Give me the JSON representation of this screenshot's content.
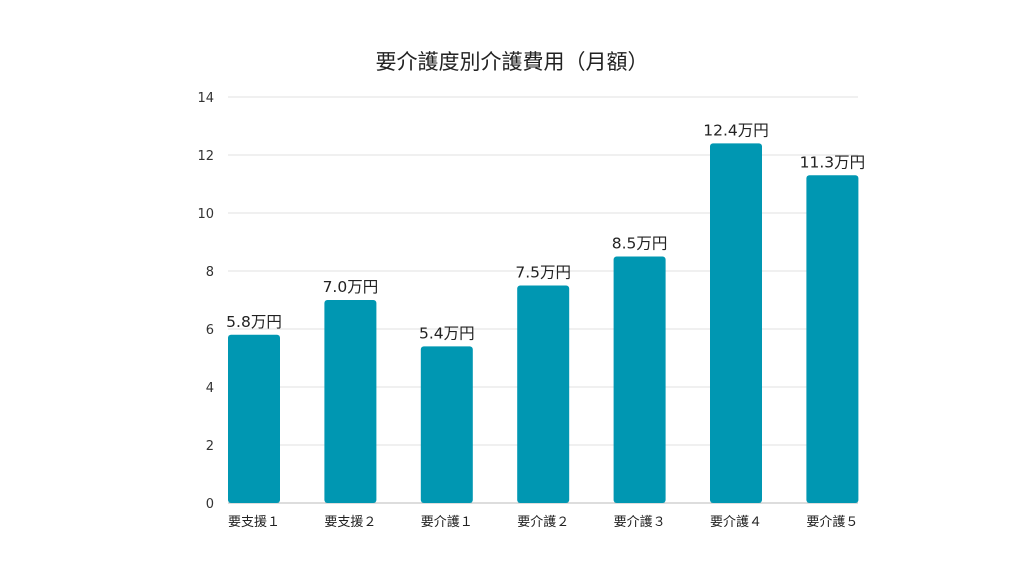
{
  "chart_data": {
    "type": "bar",
    "title": "要介護度別介護費用（月額）",
    "xlabel": "",
    "ylabel": "",
    "categories": [
      "要支援１",
      "要支援２",
      "要介護１",
      "要介護２",
      "要介護３",
      "要介護４",
      "要介護５"
    ],
    "values": [
      5.8,
      7.0,
      5.4,
      7.5,
      8.5,
      12.4,
      11.3
    ],
    "data_labels": [
      "5.8万円",
      "7.0万円",
      "5.4万円",
      "7.5万円",
      "8.5万円",
      "12.4万円",
      "11.3万円"
    ],
    "ylim": [
      0,
      14
    ],
    "yticks": [
      0,
      2,
      4,
      6,
      8,
      10,
      12,
      14
    ],
    "grid": true,
    "legend": "none",
    "bar_color": "#0097b2"
  }
}
